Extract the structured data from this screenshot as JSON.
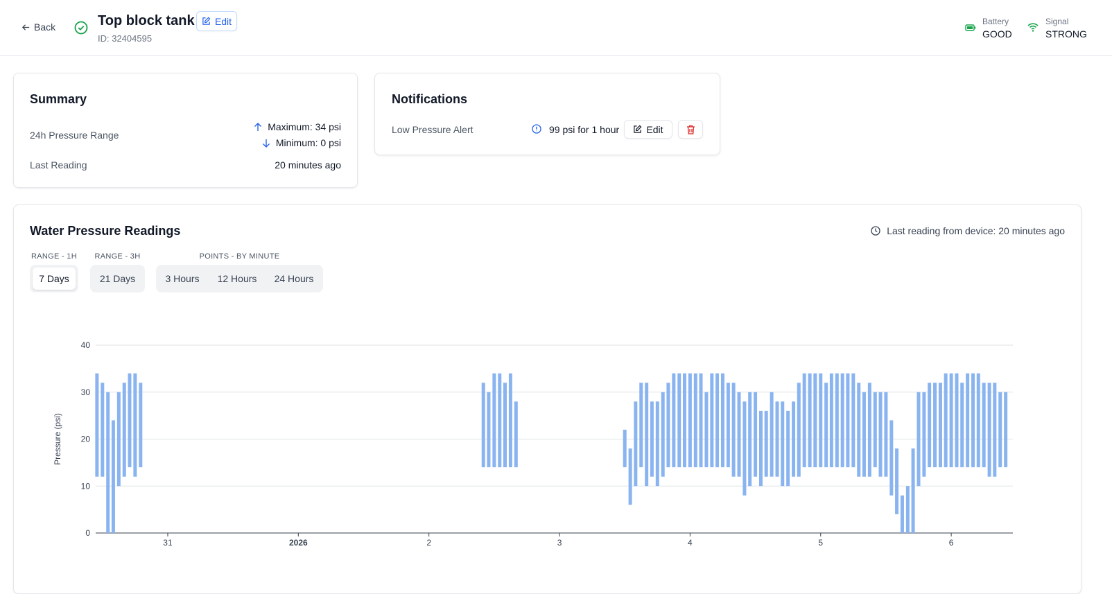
{
  "header": {
    "back": "Back",
    "title": "Top block tank",
    "edit": "Edit",
    "id": "ID: 32404595",
    "battery_label": "Battery",
    "battery_value": "GOOD",
    "signal_label": "Signal",
    "signal_value": "STRONG"
  },
  "summary": {
    "title": "Summary",
    "range_label": "24h Pressure Range",
    "maximum": "Maximum: 34 psi",
    "minimum": "Minimum: 0 psi",
    "last_label": "Last Reading",
    "last_value": "20 minutes ago"
  },
  "notifications": {
    "title": "Notifications",
    "alert_label": "Low Pressure Alert",
    "alert_rule": "99 psi for 1 hour",
    "edit": "Edit"
  },
  "readings": {
    "title": "Water Pressure Readings",
    "last_reading": "Last reading from device: 20 minutes ago",
    "tab_groups": [
      {
        "label": "RANGE - 1H",
        "options": [
          "7 Days"
        ]
      },
      {
        "label": "RANGE - 3H",
        "options": [
          "21 Days"
        ]
      },
      {
        "label": "POINTS - BY MINUTE",
        "options": [
          "3 Hours",
          "12 Hours",
          "24 Hours"
        ]
      }
    ]
  },
  "chart_data": {
    "type": "range-bar",
    "y_label": "Pressure (psi)",
    "color": "#8ab4f0",
    "grid": true,
    "xlim": [
      30.448,
      37.472
    ],
    "xticks": [
      31,
      {
        "value": 32,
        "label": "2026"
      },
      {
        "value": 33,
        "label": "2"
      },
      {
        "value": 34,
        "label": "3"
      },
      {
        "value": 35,
        "label": "4"
      },
      {
        "value": 36,
        "label": "5"
      },
      {
        "value": 37,
        "label": "6"
      }
    ],
    "ylim": [
      0,
      40
    ],
    "yticks": [
      0,
      10,
      20,
      30,
      40
    ],
    "x": [
      30.458,
      30.5,
      30.542,
      30.583,
      30.625,
      30.667,
      30.708,
      30.75,
      30.792,
      33.417,
      33.458,
      33.5,
      33.542,
      33.583,
      33.625,
      33.667,
      34.5,
      34.542,
      34.583,
      34.625,
      34.667,
      34.708,
      34.75,
      34.792,
      34.833,
      34.875,
      34.917,
      34.958,
      35,
      35.042,
      35.083,
      35.125,
      35.167,
      35.208,
      35.25,
      35.292,
      35.333,
      35.375,
      35.417,
      35.458,
      35.5,
      35.542,
      35.583,
      35.625,
      35.667,
      35.708,
      35.75,
      35.792,
      35.833,
      35.875,
      35.917,
      35.958,
      36,
      36.042,
      36.083,
      36.125,
      36.167,
      36.208,
      36.25,
      36.292,
      36.333,
      36.375,
      36.417,
      36.458,
      36.5,
      36.542,
      36.583,
      36.625,
      36.667,
      36.708,
      36.75,
      36.792,
      36.833,
      36.875,
      36.917,
      36.958,
      37,
      37.042,
      37.083,
      37.125,
      37.167,
      37.208,
      37.25,
      37.292,
      37.333,
      37.375,
      37.417
    ],
    "high": [
      34,
      32,
      30,
      24,
      30,
      32,
      34,
      34,
      32,
      32,
      30,
      34,
      34,
      32,
      34,
      28,
      22,
      18,
      28,
      32,
      32,
      28,
      28,
      30,
      32,
      34,
      34,
      34,
      34,
      34,
      34,
      30,
      34,
      34,
      34,
      32,
      32,
      30,
      28,
      30,
      30,
      26,
      26,
      30,
      28,
      28,
      26,
      28,
      32,
      34,
      34,
      34,
      34,
      32,
      34,
      34,
      34,
      34,
      34,
      32,
      30,
      32,
      30,
      30,
      30,
      24,
      18,
      8,
      10,
      18,
      30,
      30,
      32,
      32,
      32,
      34,
      34,
      34,
      32,
      34,
      34,
      34,
      32,
      32,
      32,
      30,
      30
    ],
    "low": [
      12,
      12,
      0,
      0,
      10,
      12,
      14,
      12,
      14,
      14,
      14,
      14,
      14,
      14,
      14,
      14,
      14,
      6,
      10,
      14,
      10,
      12,
      10,
      12,
      14,
      14,
      14,
      14,
      14,
      14,
      14,
      14,
      14,
      14,
      14,
      14,
      12,
      12,
      8,
      10,
      12,
      10,
      12,
      12,
      12,
      10,
      10,
      12,
      12,
      14,
      14,
      14,
      14,
      14,
      14,
      14,
      14,
      14,
      14,
      12,
      12,
      12,
      14,
      12,
      12,
      8,
      4,
      0,
      0,
      0,
      10,
      12,
      14,
      14,
      14,
      14,
      14,
      14,
      14,
      14,
      14,
      14,
      14,
      12,
      12,
      14,
      14
    ]
  }
}
